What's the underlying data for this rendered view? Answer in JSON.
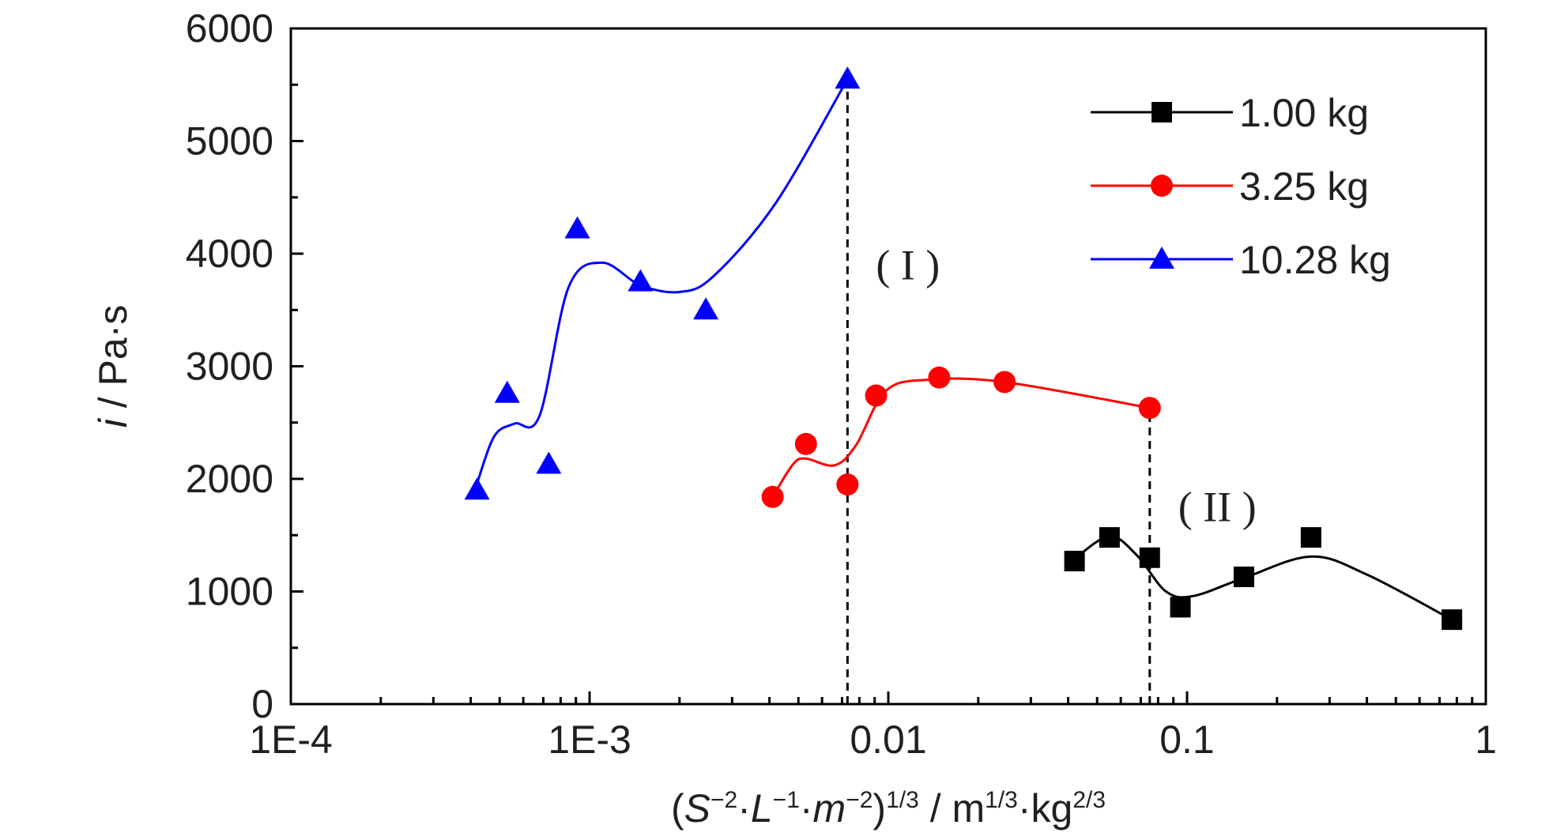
{
  "chart_data": {
    "type": "scatter",
    "xscale": "log",
    "xlim": [
      0.0001,
      1
    ],
    "ylim": [
      0,
      6000
    ],
    "xticks": [
      0.0001,
      0.001,
      0.01,
      0.1,
      1
    ],
    "xtick_labels": [
      "1E-4",
      "1E-3",
      "0.01",
      "0.1",
      "1"
    ],
    "yticks": [
      0,
      1000,
      2000,
      3000,
      4000,
      5000,
      6000
    ],
    "ytick_labels": [
      "0",
      "1000",
      "2000",
      "3000",
      "4000",
      "5000",
      "6000"
    ],
    "ylabel": {
      "italic": "i",
      "rest": " / Pa·s"
    },
    "xlabel": {
      "parts": [
        "(S",
        "−2",
        "·L",
        "−1",
        "·m",
        "−2",
        ")",
        "1/3",
        " / m",
        "1/3",
        "·kg",
        "2/3"
      ]
    },
    "grid": false,
    "legend_position": "top-right",
    "series": [
      {
        "name": "1.00 kg",
        "color": "#000000",
        "marker": "square",
        "x": [
          0.042,
          0.055,
          0.075,
          0.095,
          0.155,
          0.26,
          0.77
        ],
        "y": [
          1270,
          1480,
          1300,
          860,
          1130,
          1480,
          750
        ],
        "curve": [
          [
            0.042,
            1290
          ],
          [
            0.055,
            1490
          ],
          [
            0.068,
            1320
          ],
          [
            0.085,
            1000
          ],
          [
            0.105,
            960
          ],
          [
            0.155,
            1120
          ],
          [
            0.26,
            1310
          ],
          [
            0.4,
            1150
          ],
          [
            0.77,
            750
          ]
        ]
      },
      {
        "name": "3.25 kg",
        "color": "#ff0000",
        "marker": "circle",
        "x": [
          0.0041,
          0.0053,
          0.0073,
          0.0091,
          0.0148,
          0.0245,
          0.075
        ],
        "y": [
          1840,
          2310,
          1950,
          2740,
          2900,
          2860,
          2630
        ],
        "curve": [
          [
            0.0041,
            1840
          ],
          [
            0.0048,
            2130
          ],
          [
            0.0053,
            2180
          ],
          [
            0.0066,
            2120
          ],
          [
            0.0078,
            2300
          ],
          [
            0.0098,
            2780
          ],
          [
            0.0135,
            2880
          ],
          [
            0.0245,
            2860
          ],
          [
            0.075,
            2630
          ]
        ]
      },
      {
        "name": "10.28 kg",
        "color": "#0000ff",
        "marker": "triangle",
        "x": [
          0.00042,
          0.00053,
          0.00073,
          0.00091,
          0.00148,
          0.00245,
          0.0073
        ],
        "y": [
          1900,
          2760,
          2130,
          4220,
          3750,
          3500,
          5550
        ],
        "curve": [
          [
            0.00042,
            1960
          ],
          [
            0.00048,
            2380
          ],
          [
            0.00056,
            2490
          ],
          [
            0.00068,
            2560
          ],
          [
            0.00085,
            3700
          ],
          [
            0.0011,
            3920
          ],
          [
            0.00148,
            3720
          ],
          [
            0.002,
            3660
          ],
          [
            0.0026,
            3800
          ],
          [
            0.0042,
            4450
          ],
          [
            0.0073,
            5550
          ]
        ]
      }
    ],
    "annotations": [
      {
        "text": "( I )",
        "x": 0.0073,
        "y": 3900
      },
      {
        "text": "( II )",
        "x": 0.075,
        "y": 1750
      }
    ],
    "reference_lines": [
      {
        "x": 0.0073,
        "y_from": 0,
        "y_to": 5550
      },
      {
        "x": 0.075,
        "y_from": 0,
        "y_to": 2630
      }
    ]
  }
}
